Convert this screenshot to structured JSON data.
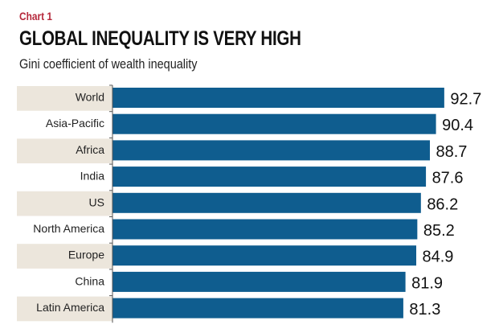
{
  "chart_data": {
    "type": "bar",
    "orientation": "horizontal",
    "kicker": "Chart 1",
    "title": "GLOBAL INEQUALITY IS VERY HIGH",
    "subtitle": "Gini coefficient of wealth inequality",
    "categories": [
      "World",
      "Asia-Pacific",
      "Africa",
      "India",
      "US",
      "North America",
      "Europe",
      "China",
      "Latin America"
    ],
    "values": [
      92.7,
      90.4,
      88.7,
      87.6,
      86.2,
      85.2,
      84.9,
      81.9,
      81.3
    ],
    "value_labels": [
      "92.7",
      "90.4",
      "88.7",
      "87.6",
      "86.2",
      "85.2",
      "84.9",
      "81.9",
      "81.3"
    ],
    "xlim": [
      0,
      100
    ],
    "grid": false,
    "colors": {
      "bar": "#0f5d8f",
      "label_band": "#ece6dc",
      "kicker": "#b5283b"
    }
  }
}
